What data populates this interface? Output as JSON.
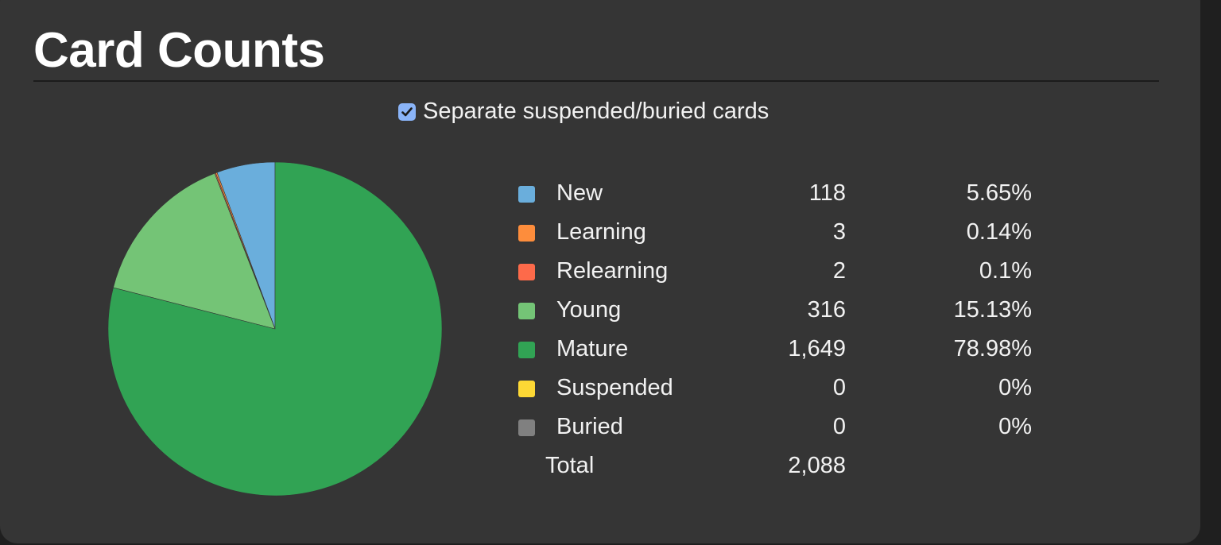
{
  "header": {
    "title": "Card Counts"
  },
  "toggle": {
    "label": "Separate suspended/buried cards",
    "checked": true
  },
  "chart_data": {
    "type": "pie",
    "categories": [
      "New",
      "Learning",
      "Relearning",
      "Young",
      "Mature",
      "Suspended",
      "Buried"
    ],
    "values": [
      118,
      3,
      2,
      316,
      1649,
      0,
      0
    ],
    "percentages": [
      "5.65%",
      "0.14%",
      "0.1%",
      "15.13%",
      "78.98%",
      "0%",
      "0%"
    ],
    "counts_display": [
      "118",
      "3",
      "2",
      "316",
      "1,649",
      "0",
      "0"
    ],
    "colors": [
      "#6aaedc",
      "#fd8d3c",
      "#fd6a4a",
      "#74c476",
      "#31a354",
      "#fdd835",
      "#808080"
    ],
    "total_label": "Total",
    "total": "2,088"
  }
}
